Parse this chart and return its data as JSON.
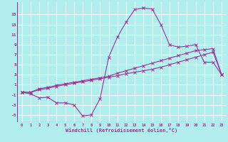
{
  "xlabel": "Windchill (Refroidissement éolien,°C)",
  "background_color": "#b2eded",
  "grid_color": "#ffffff",
  "line_color": "#993399",
  "x_values": [
    0,
    1,
    2,
    3,
    4,
    5,
    6,
    7,
    8,
    9,
    10,
    11,
    12,
    13,
    14,
    15,
    16,
    17,
    18,
    19,
    20,
    21,
    22,
    23
  ],
  "line1_y": [
    -0.5,
    -0.8,
    -1.6,
    -1.5,
    -2.6,
    -2.6,
    -3.0,
    -5.2,
    -5.0,
    -1.8,
    6.5,
    10.5,
    13.5,
    16.0,
    16.3,
    16.1,
    13.0,
    9.0,
    8.5,
    8.7,
    9.0,
    5.5,
    5.5,
    3.0
  ],
  "line2_y": [
    -0.5,
    -0.5,
    0.2,
    0.5,
    0.9,
    1.2,
    1.5,
    1.8,
    2.1,
    2.4,
    2.7,
    3.3,
    3.8,
    4.3,
    4.8,
    5.3,
    5.8,
    6.3,
    6.8,
    7.3,
    7.8,
    8.0,
    8.2,
    3.0
  ],
  "line3_y": [
    -0.5,
    -0.5,
    0.0,
    0.3,
    0.7,
    1.0,
    1.3,
    1.6,
    1.9,
    2.2,
    2.5,
    2.8,
    3.2,
    3.5,
    3.8,
    4.1,
    4.5,
    5.0,
    5.5,
    6.0,
    6.5,
    7.0,
    7.5,
    3.0
  ],
  "yticks": [
    -5,
    -3,
    -1,
    1,
    3,
    5,
    7,
    9,
    11,
    13,
    15
  ],
  "xticks": [
    0,
    1,
    2,
    3,
    4,
    5,
    6,
    7,
    8,
    9,
    10,
    11,
    12,
    13,
    14,
    15,
    16,
    17,
    18,
    19,
    20,
    21,
    22,
    23
  ],
  "xlim": [
    -0.5,
    23.5
  ],
  "ylim": [
    -6.5,
    17.5
  ],
  "figsize": [
    3.2,
    2.0
  ],
  "dpi": 100
}
